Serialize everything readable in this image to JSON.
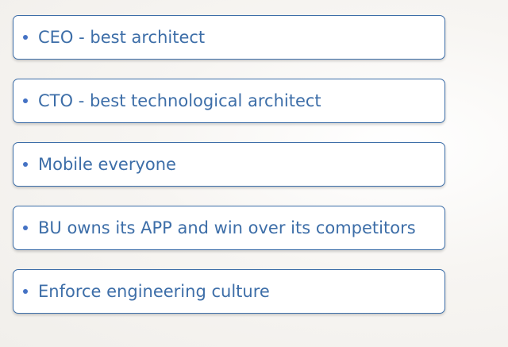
{
  "items": [
    {
      "label": "CEO - best architect"
    },
    {
      "label": "CTO - best technological architect"
    },
    {
      "label": "Mobile everyone"
    },
    {
      "label": "BU owns its APP and win over its competitors"
    },
    {
      "label": "Enforce engineering culture"
    }
  ],
  "colors": {
    "border": "#3d6ea8",
    "text": "#3d6ea8",
    "bullet": "#4472c4",
    "background": "#f5f3f0"
  }
}
